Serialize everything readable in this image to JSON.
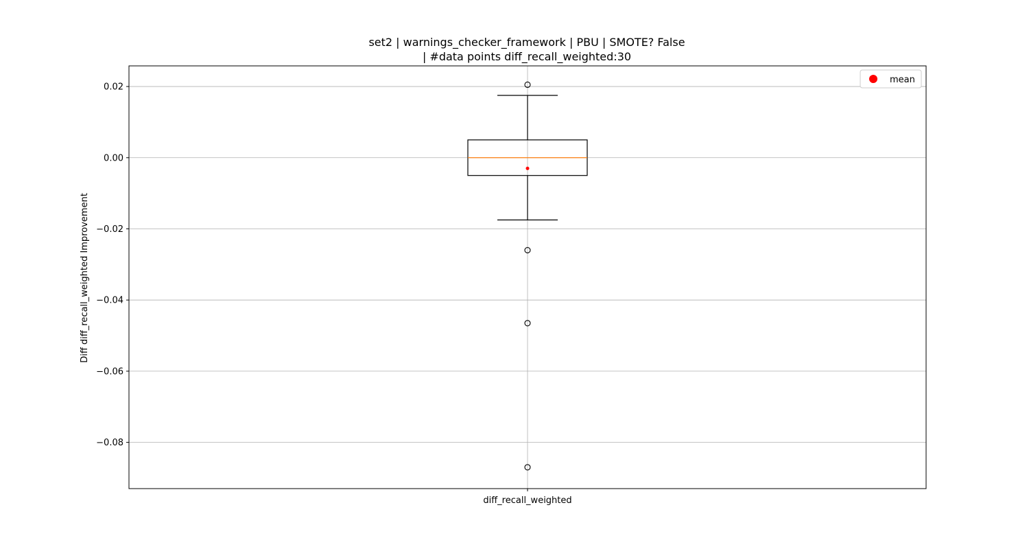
{
  "chart_data": {
    "type": "box",
    "title_line1": "set2 | warnings_checker_framework | PBU | SMOTE? False",
    "title_line2": "| #data points diff_recall_weighted:30",
    "xlabel": "",
    "ylabel": "Diff diff_recall_weighted Improvement",
    "categories": [
      "diff_recall_weighted"
    ],
    "ylim": [
      -0.093,
      0.0258
    ],
    "yticks": [
      0.02,
      0.0,
      -0.02,
      -0.04,
      -0.06,
      -0.08
    ],
    "ytick_labels": [
      "0.02",
      "0.00",
      "−0.02",
      "−0.04",
      "−0.06",
      "−0.08"
    ],
    "grid": true,
    "legend_position": "upper right",
    "legend": [
      {
        "label": "mean",
        "marker": "red-dot"
      }
    ],
    "boxes": [
      {
        "name": "diff_recall_weighted",
        "q1": -0.005,
        "median": 0.0,
        "q3": 0.005,
        "whisker_low": -0.0175,
        "whisker_high": 0.0175,
        "mean": -0.003,
        "outliers": [
          0.0205,
          -0.026,
          -0.0465,
          -0.087
        ]
      }
    ],
    "colors": {
      "box": "#000000",
      "median": "#ff7f0e",
      "mean": "#ff0000",
      "grid": "#b0b0b0"
    }
  }
}
